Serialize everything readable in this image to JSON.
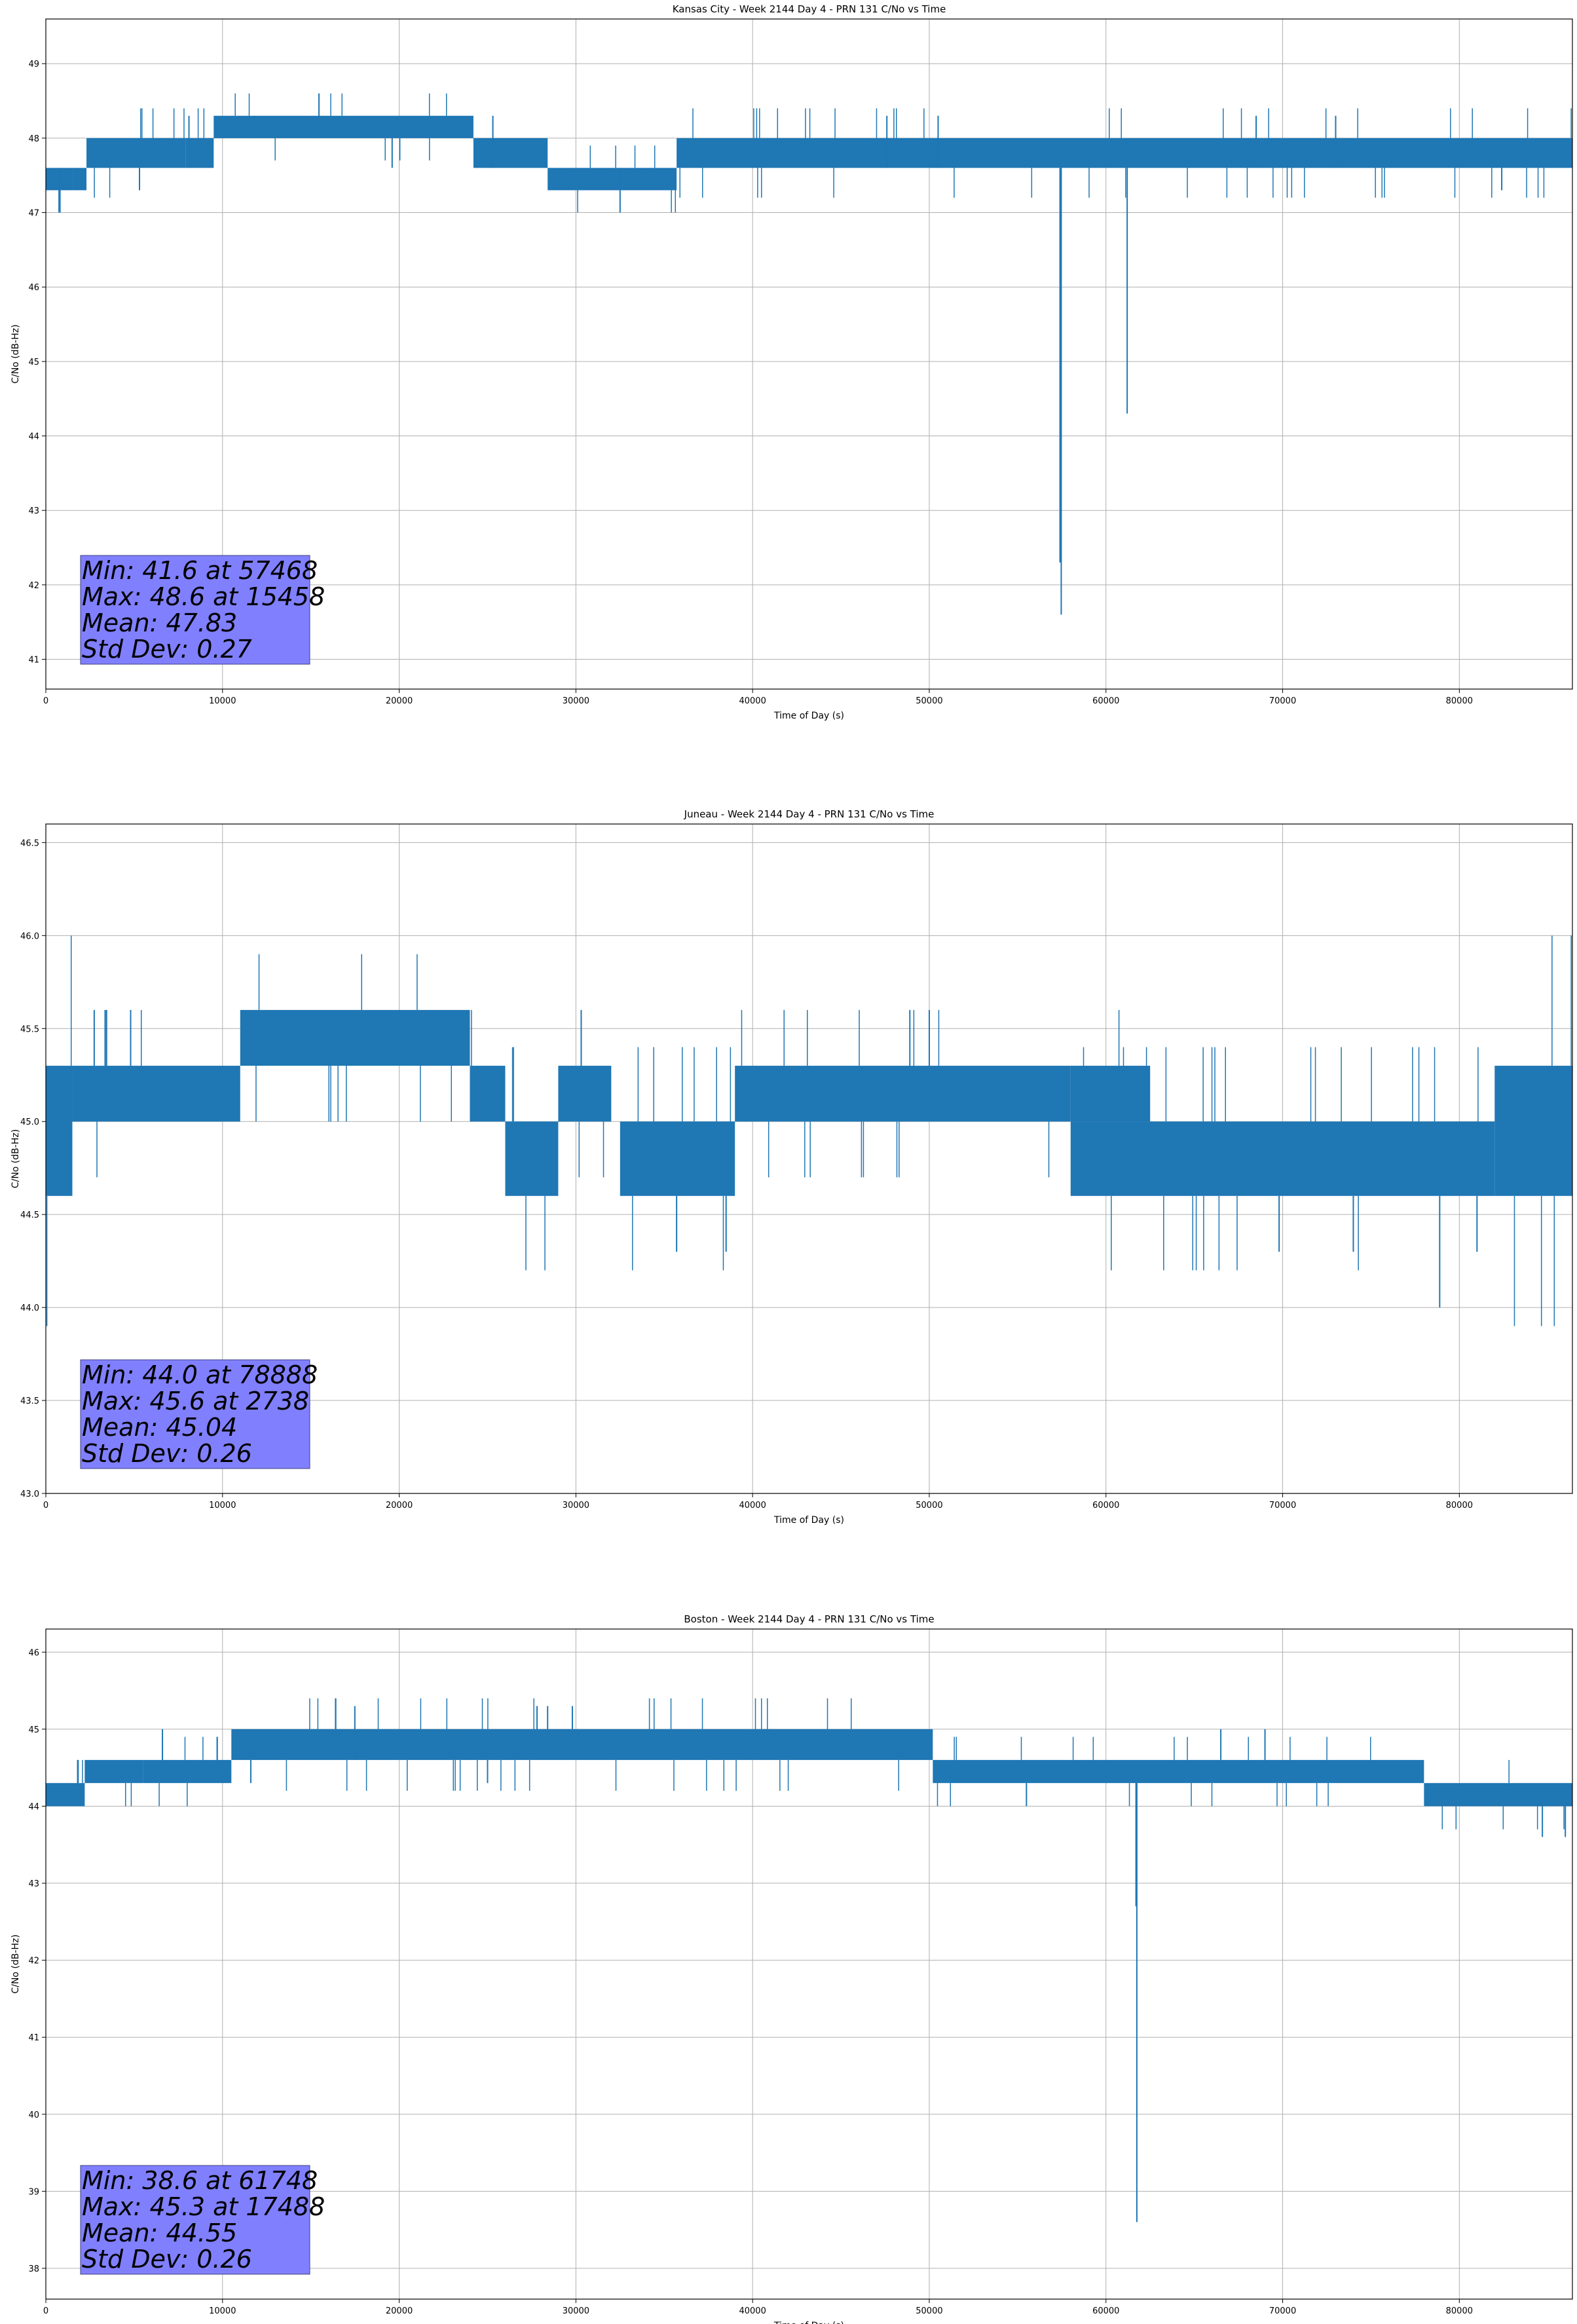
{
  "figure": {
    "background": "#ffffff"
  },
  "chart_data": [
    {
      "type": "line",
      "title": "Kansas City - Week 2144 Day 4 - PRN 131 C/No vs Time",
      "xlabel": "Time of Day (s)",
      "ylabel": "C/No (dB-Hz)",
      "xlim": [
        0,
        86400
      ],
      "ylim": [
        40.6,
        49.6
      ],
      "xticks": [
        0,
        10000,
        20000,
        30000,
        40000,
        50000,
        60000,
        70000,
        80000
      ],
      "yticks": [
        41,
        42,
        43,
        44,
        45,
        46,
        47,
        48,
        49
      ],
      "ytick_labels": [
        "41",
        "42",
        "43",
        "44",
        "45",
        "46",
        "47",
        "48",
        "49"
      ],
      "grid": true,
      "line_color": "#1f77b4",
      "stats_box": {
        "lines": [
          "Min: 41.6 at 57468",
          "Max: 48.6 at 15458",
          "Mean: 47.83",
          "Std Dev: 0.27"
        ],
        "color": "#8080ff"
      },
      "bands": [
        {
          "x0": 0,
          "x1": 1500,
          "lo": 47.3,
          "hi": 47.6
        },
        {
          "x0": 1500,
          "x1": 2300,
          "lo": 47.3,
          "hi": 47.6
        },
        {
          "x0": 2300,
          "x1": 7900,
          "lo": 47.6,
          "hi": 48.0
        },
        {
          "x0": 7900,
          "x1": 9500,
          "lo": 47.6,
          "hi": 48.0
        },
        {
          "x0": 9500,
          "x1": 24200,
          "lo": 48.0,
          "hi": 48.3
        },
        {
          "x0": 24200,
          "x1": 28400,
          "lo": 47.6,
          "hi": 48.0
        },
        {
          "x0": 28400,
          "x1": 35700,
          "lo": 47.3,
          "hi": 47.6
        },
        {
          "x0": 35700,
          "x1": 86400,
          "lo": 47.6,
          "hi": 48.0
        }
      ],
      "spikes": [
        {
          "x": 800,
          "lo": 47.0,
          "hi": 47.6
        },
        {
          "x": 5300,
          "lo": 47.3,
          "hi": 47.6
        },
        {
          "x": 8100,
          "lo": 47.6,
          "hi": 48.3
        },
        {
          "x": 11800,
          "lo": 48.0,
          "hi": 48.3
        },
        {
          "x": 15458,
          "lo": 48.0,
          "hi": 48.6
        },
        {
          "x": 19600,
          "lo": 47.6,
          "hi": 48.0
        },
        {
          "x": 25300,
          "lo": 47.6,
          "hi": 48.3
        },
        {
          "x": 32500,
          "lo": 47.0,
          "hi": 47.6
        },
        {
          "x": 47600,
          "lo": 47.6,
          "hi": 48.3
        },
        {
          "x": 50500,
          "lo": 47.6,
          "hi": 48.3
        },
        {
          "x": 57468,
          "lo": 41.6,
          "hi": 47.6
        },
        {
          "x": 57400,
          "lo": 42.3,
          "hi": 47.6
        },
        {
          "x": 61200,
          "lo": 44.3,
          "hi": 47.6
        },
        {
          "x": 68500,
          "lo": 47.6,
          "hi": 48.3
        },
        {
          "x": 73000,
          "lo": 47.6,
          "hi": 48.3
        },
        {
          "x": 82400,
          "lo": 47.3,
          "hi": 47.6
        }
      ]
    },
    {
      "type": "line",
      "title": "Juneau - Week 2144 Day 4 - PRN 131 C/No vs Time",
      "xlabel": "Time of Day (s)",
      "ylabel": "C/No (dB-Hz)",
      "xlim": [
        0,
        86400
      ],
      "ylim": [
        43.0,
        46.6
      ],
      "xticks": [
        0,
        10000,
        20000,
        30000,
        40000,
        50000,
        60000,
        70000,
        80000
      ],
      "yticks": [
        43.0,
        43.5,
        44.0,
        44.5,
        45.0,
        45.5,
        46.0,
        46.5
      ],
      "ytick_labels": [
        "43.0",
        "43.5",
        "44.0",
        "44.5",
        "45.0",
        "45.5",
        "46.0",
        "46.5"
      ],
      "grid": true,
      "line_color": "#1f77b4",
      "stats_box": {
        "lines": [
          "Min: 44.0 at 78888",
          "Max: 45.6 at 2738",
          "Mean: 45.04",
          "Std Dev: 0.26"
        ],
        "color": "#8080ff"
      },
      "bands": [
        {
          "x0": 0,
          "x1": 1500,
          "lo": 44.6,
          "hi": 45.3
        },
        {
          "x0": 1500,
          "x1": 11000,
          "lo": 45.0,
          "hi": 45.3
        },
        {
          "x0": 11000,
          "x1": 24000,
          "lo": 45.3,
          "hi": 45.6
        },
        {
          "x0": 24000,
          "x1": 26000,
          "lo": 45.0,
          "hi": 45.3
        },
        {
          "x0": 26000,
          "x1": 29000,
          "lo": 44.6,
          "hi": 45.0
        },
        {
          "x0": 29000,
          "x1": 32000,
          "lo": 45.0,
          "hi": 45.3
        },
        {
          "x0": 32500,
          "x1": 39000,
          "lo": 44.6,
          "hi": 45.0
        },
        {
          "x0": 39000,
          "x1": 58000,
          "lo": 45.0,
          "hi": 45.3
        },
        {
          "x0": 58000,
          "x1": 62500,
          "lo": 45.0,
          "hi": 45.3
        },
        {
          "x0": 58000,
          "x1": 82000,
          "lo": 44.6,
          "hi": 45.0
        },
        {
          "x0": 82000,
          "x1": 86400,
          "lo": 44.6,
          "hi": 45.3
        }
      ],
      "spikes": [
        {
          "x": 2738,
          "lo": 45.3,
          "hi": 45.6
        },
        {
          "x": 4800,
          "lo": 45.3,
          "hi": 45.6
        },
        {
          "x": 30300,
          "lo": 45.3,
          "hi": 45.6
        },
        {
          "x": 35700,
          "lo": 44.3,
          "hi": 44.6
        },
        {
          "x": 38500,
          "lo": 44.3,
          "hi": 44.6
        },
        {
          "x": 48900,
          "lo": 45.3,
          "hi": 45.6
        },
        {
          "x": 50000,
          "lo": 45.3,
          "hi": 45.6
        },
        {
          "x": 69800,
          "lo": 44.3,
          "hi": 44.6
        },
        {
          "x": 74000,
          "lo": 44.3,
          "hi": 44.6
        },
        {
          "x": 78888,
          "lo": 44.0,
          "hi": 44.6
        },
        {
          "x": 81000,
          "lo": 44.3,
          "hi": 44.6
        }
      ]
    },
    {
      "type": "line",
      "title": "Boston - Week 2144 Day 4 - PRN 131 C/No vs Time",
      "xlabel": "Time of Day (s)",
      "ylabel": "C/No (dB-Hz)",
      "xlim": [
        0,
        86400
      ],
      "ylim": [
        37.6,
        46.3
      ],
      "xticks": [
        0,
        10000,
        20000,
        30000,
        40000,
        50000,
        60000,
        70000,
        80000
      ],
      "yticks": [
        38,
        39,
        40,
        41,
        42,
        43,
        44,
        45,
        46
      ],
      "ytick_labels": [
        "38",
        "39",
        "40",
        "41",
        "42",
        "43",
        "44",
        "45",
        "46"
      ],
      "grid": true,
      "line_color": "#1f77b4",
      "stats_box": {
        "lines": [
          "Min: 38.6 at 61748",
          "Max: 45.3 at 17488",
          "Mean: 44.55",
          "Std Dev: 0.26"
        ],
        "color": "#8080ff"
      },
      "bands": [
        {
          "x0": 0,
          "x1": 2200,
          "lo": 44.0,
          "hi": 44.3
        },
        {
          "x0": 2200,
          "x1": 5500,
          "lo": 44.3,
          "hi": 44.6
        },
        {
          "x0": 5500,
          "x1": 10500,
          "lo": 44.3,
          "hi": 44.6
        },
        {
          "x0": 10500,
          "x1": 50200,
          "lo": 44.6,
          "hi": 45.0
        },
        {
          "x0": 50200,
          "x1": 78000,
          "lo": 44.3,
          "hi": 44.6
        },
        {
          "x0": 78000,
          "x1": 86400,
          "lo": 44.0,
          "hi": 44.3
        }
      ],
      "spikes": [
        {
          "x": 1800,
          "lo": 44.0,
          "hi": 44.6
        },
        {
          "x": 6600,
          "lo": 44.6,
          "hi": 45.0
        },
        {
          "x": 11600,
          "lo": 44.3,
          "hi": 44.6
        },
        {
          "x": 17488,
          "lo": 44.6,
          "hi": 45.3
        },
        {
          "x": 25000,
          "lo": 44.3,
          "hi": 44.6
        },
        {
          "x": 27800,
          "lo": 45.0,
          "hi": 45.3
        },
        {
          "x": 28400,
          "lo": 45.0,
          "hi": 45.3
        },
        {
          "x": 29800,
          "lo": 45.0,
          "hi": 45.3
        },
        {
          "x": 55500,
          "lo": 44.0,
          "hi": 44.3
        },
        {
          "x": 61748,
          "lo": 38.6,
          "hi": 44.3
        },
        {
          "x": 61700,
          "lo": 42.7,
          "hi": 44.3
        },
        {
          "x": 66500,
          "lo": 44.6,
          "hi": 45.0
        },
        {
          "x": 69000,
          "lo": 44.6,
          "hi": 45.0
        },
        {
          "x": 84700,
          "lo": 43.6,
          "hi": 44.0
        },
        {
          "x": 86000,
          "lo": 43.6,
          "hi": 44.0
        }
      ]
    }
  ]
}
